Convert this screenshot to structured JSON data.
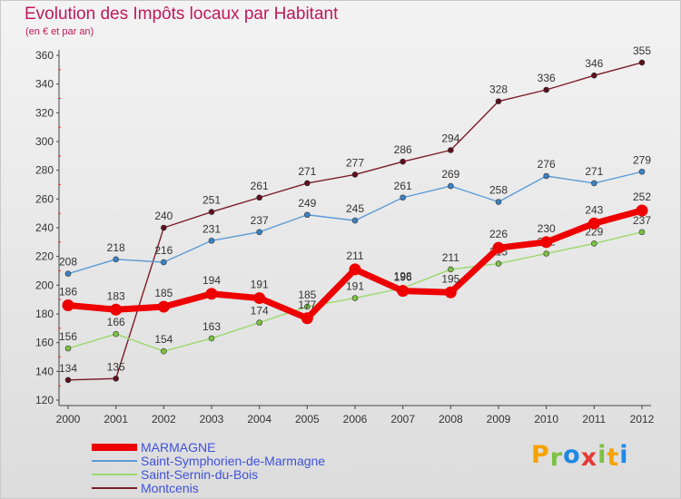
{
  "title": "Evolution des Impôts locaux par Habitant",
  "subtitle": "(en € et par an)",
  "brand": {
    "letters": [
      "P",
      "r",
      "o",
      "x",
      "i",
      "t",
      "i"
    ],
    "colors": [
      "#f5a300",
      "#7cc242",
      "#1e88e5",
      "#e53935",
      "#7cc242",
      "#f5a300",
      "#1e88e5"
    ]
  },
  "chart_data": {
    "type": "line",
    "title": "Evolution des Impôts locaux par Habitant",
    "subtitle": "(en € et par an)",
    "xlabel": "",
    "ylabel": "",
    "ylim": [
      120,
      360
    ],
    "yticks": [
      120,
      140,
      160,
      180,
      200,
      220,
      240,
      260,
      280,
      300,
      320,
      340,
      360
    ],
    "grid": false,
    "legend_position": "bottom-left",
    "categories": [
      "2000",
      "2001",
      "2002",
      "2003",
      "2004",
      "2005",
      "2006",
      "2007",
      "2008",
      "2009",
      "2010",
      "2011",
      "2012"
    ],
    "series": [
      {
        "name": "Montcenis",
        "color": "#7b1c2a",
        "marker": "#5e0f1c",
        "values": [
          134,
          135,
          240,
          251,
          261,
          271,
          277,
          286,
          294,
          328,
          336,
          346,
          355
        ]
      },
      {
        "name": "Saint-Symphorien-de-Marmagne",
        "color": "#5b9bd5",
        "marker": "#3b82c4",
        "values": [
          208,
          218,
          216,
          231,
          237,
          249,
          245,
          261,
          269,
          258,
          276,
          271,
          279
        ]
      },
      {
        "name": "Saint-Sernin-du-Bois",
        "color": "#9bd86c",
        "marker": "#7cc242",
        "values": [
          156,
          166,
          154,
          163,
          174,
          185,
          191,
          198,
          211,
          215,
          222,
          229,
          237
        ]
      },
      {
        "name": "MARMAGNE",
        "color": "#ee0000",
        "marker": "#ee0000",
        "values": [
          186,
          183,
          185,
          194,
          191,
          177,
          211,
          196,
          195,
          226,
          230,
          243,
          252
        ]
      }
    ],
    "legend_order": [
      "MARMAGNE",
      "Saint-Symphorien-de-Marmagne",
      "Saint-Sernin-du-Bois",
      "Montcenis"
    ]
  }
}
